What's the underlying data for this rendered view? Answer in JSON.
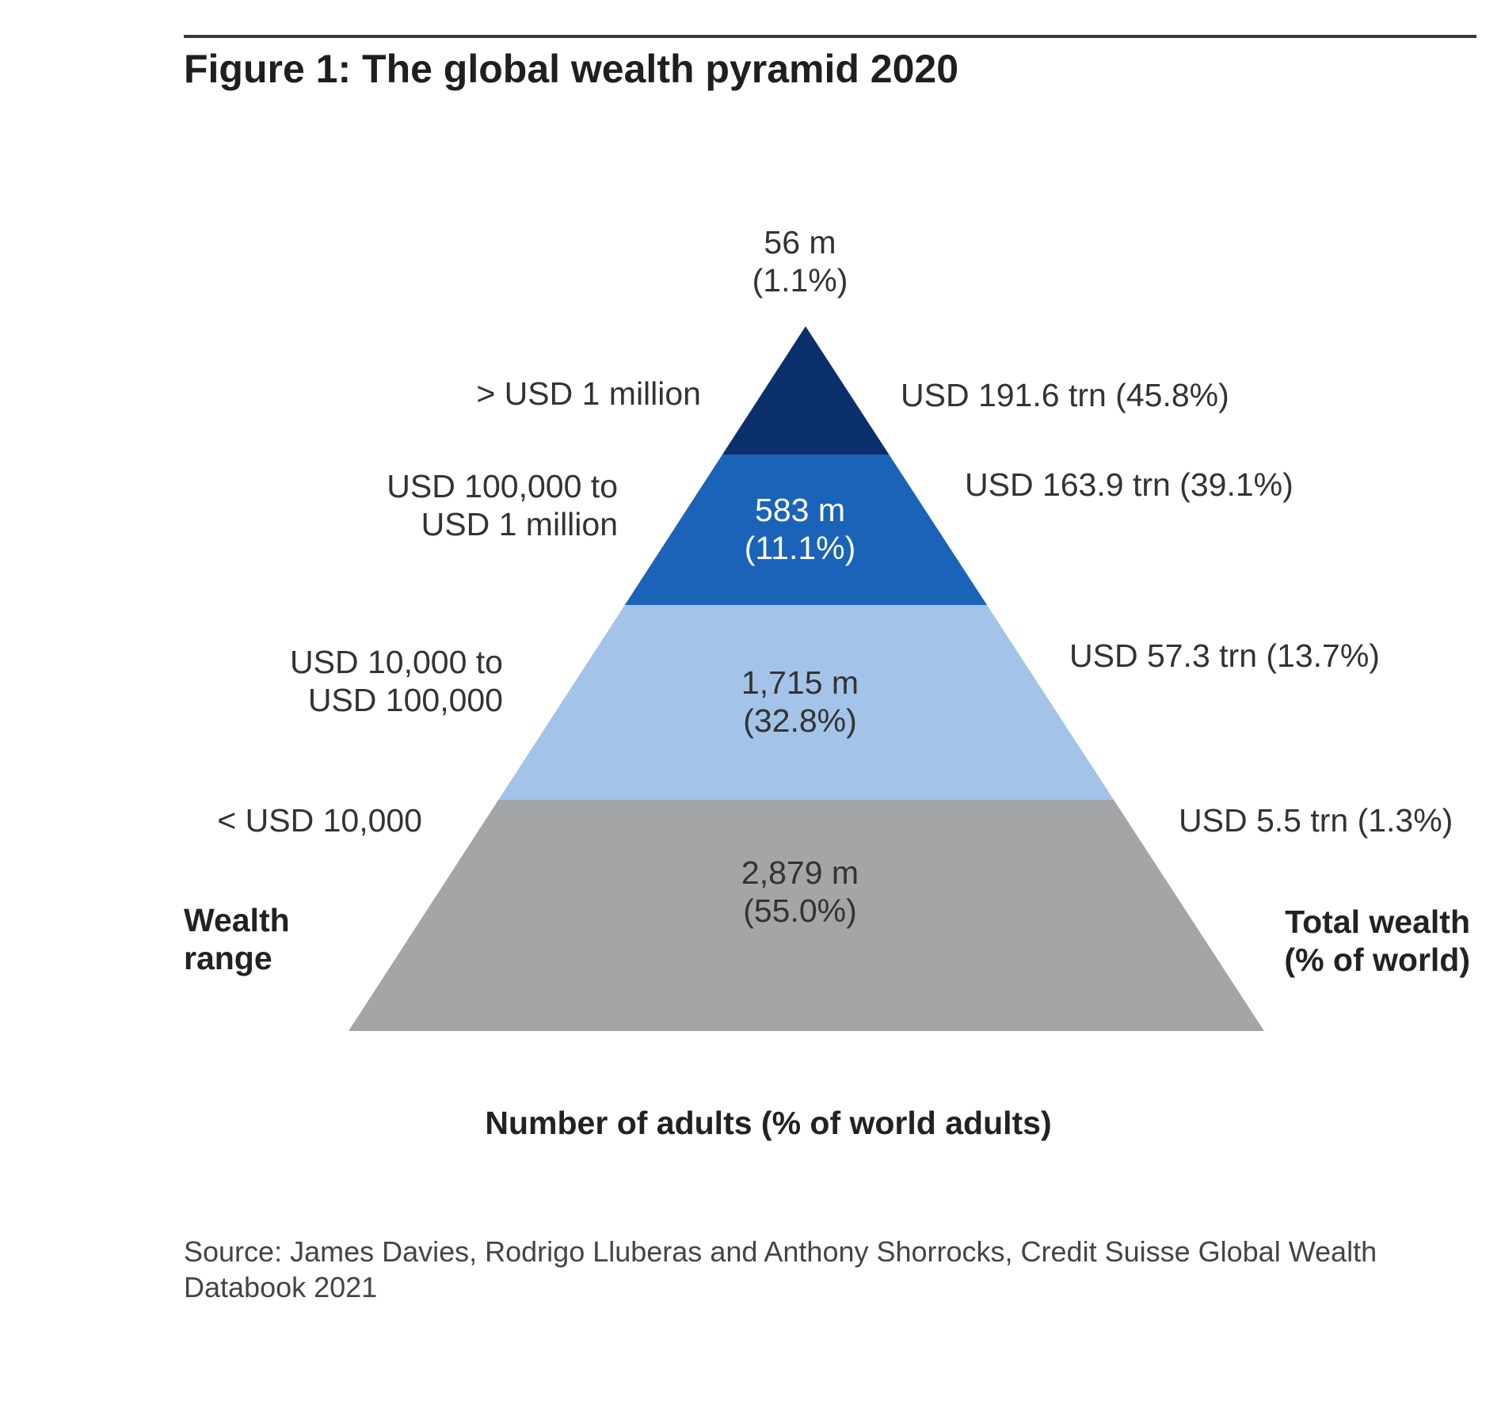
{
  "figure": {
    "title": "Figure 1: The global wealth pyramid 2020",
    "source": "Source: James Davies, Rodrigo Lluberas and Anthony Shorrocks, Credit Suisse Global Wealth Databook 2021"
  },
  "chart_data": {
    "type": "pyramid",
    "left_heading_line1": "Wealth",
    "left_heading_line2": "range",
    "right_heading_line1": "Total wealth",
    "right_heading_line2": "(% of world)",
    "xlabel": "Number of adults (% of world adults)",
    "tiers": [
      {
        "wealth_range_line1": "> USD 1 million",
        "wealth_range_line2": "",
        "adults_m": 56,
        "adults_label_line1": "56 m",
        "adults_label_line2": "(1.1%)",
        "adults_pct": 1.1,
        "total_wealth_trn": 191.6,
        "total_wealth_pct": 45.8,
        "total_wealth_label": "USD 191.6 trn (45.8%)",
        "color": "#0b2f6b"
      },
      {
        "wealth_range_line1": "USD 100,000 to",
        "wealth_range_line2": "USD 1 million",
        "adults_m": 583,
        "adults_label_line1": "583 m",
        "adults_label_line2": "(11.1%)",
        "adults_pct": 11.1,
        "total_wealth_trn": 163.9,
        "total_wealth_pct": 39.1,
        "total_wealth_label": "USD 163.9 trn (39.1%)",
        "color": "#1a63b8"
      },
      {
        "wealth_range_line1": "USD 10,000 to",
        "wealth_range_line2": "USD 100,000",
        "adults_m": 1715,
        "adults_label_line1": "1,715 m",
        "adults_label_line2": "(32.8%)",
        "adults_pct": 32.8,
        "total_wealth_trn": 57.3,
        "total_wealth_pct": 13.7,
        "total_wealth_label": "USD 57.3 trn (13.7%)",
        "color": "#a3c4e8"
      },
      {
        "wealth_range_line1": "< USD 10,000",
        "wealth_range_line2": "",
        "adults_m": 2879,
        "adults_label_line1": "2,879 m",
        "adults_label_line2": "(55.0%)",
        "adults_pct": 55.0,
        "total_wealth_trn": 5.5,
        "total_wealth_pct": 1.3,
        "total_wealth_label": "USD 5.5 trn (1.3%)",
        "color": "#a4a5a7"
      }
    ]
  }
}
